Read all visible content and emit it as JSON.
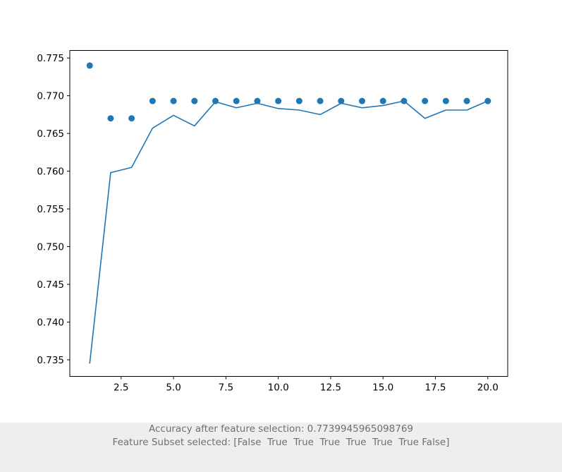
{
  "chart_data": {
    "type": "line",
    "title": "",
    "xlabel": "",
    "ylabel": "",
    "xlim": [
      0.05,
      20.95
    ],
    "ylim": [
      0.7328,
      0.776
    ],
    "x_ticks": [
      2.5,
      5.0,
      7.5,
      10.0,
      12.5,
      15.0,
      17.5,
      20.0
    ],
    "x_tick_labels": [
      "2.5",
      "5.0",
      "7.5",
      "10.0",
      "12.5",
      "15.0",
      "17.5",
      "20.0"
    ],
    "y_ticks": [
      0.735,
      0.74,
      0.745,
      0.75,
      0.755,
      0.76,
      0.765,
      0.77,
      0.775
    ],
    "y_tick_labels": [
      "0.735",
      "0.740",
      "0.745",
      "0.750",
      "0.755",
      "0.760",
      "0.765",
      "0.770",
      "0.775"
    ],
    "grid": false,
    "legend": "none",
    "color": "#1f77b4",
    "x": [
      1,
      2,
      3,
      4,
      5,
      6,
      7,
      8,
      9,
      10,
      11,
      12,
      13,
      14,
      15,
      16,
      17,
      18,
      19,
      20
    ],
    "series": [
      {
        "kind": "line",
        "values": [
          0.7345,
          0.7598,
          0.7605,
          0.7657,
          0.7674,
          0.766,
          0.7692,
          0.7684,
          0.769,
          0.7683,
          0.7681,
          0.7675,
          0.769,
          0.7684,
          0.7687,
          0.7693,
          0.767,
          0.7681,
          0.7681,
          0.7693
        ]
      },
      {
        "kind": "scatter",
        "values": [
          0.774,
          0.767,
          0.767,
          0.7693,
          0.7693,
          0.7693,
          0.7693,
          0.7693,
          0.7693,
          0.7693,
          0.7693,
          0.7693,
          0.7693,
          0.7693,
          0.7693,
          0.7693,
          0.7693,
          0.7693,
          0.7693,
          0.7693
        ]
      }
    ]
  },
  "footer": {
    "line1": "Accuracy after feature selection: 0.7739945965098769",
    "line2": "Feature Subset selected: [False  True  True  True  True  True  True False]"
  }
}
